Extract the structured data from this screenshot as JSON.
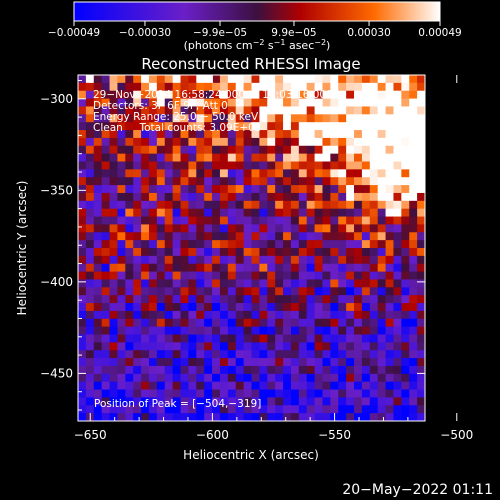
{
  "colorbar": {
    "tick_labels": [
      "−0.00049",
      "−0.00030",
      "−9.9e−05",
      "9.9e−05",
      "0.00030",
      "0.00049"
    ],
    "tick_values": [
      -0.00049,
      -0.0003,
      -9.9e-05,
      9.9e-05,
      0.0003,
      0.00049
    ],
    "range": [
      -0.00049,
      0.00049
    ],
    "unit_prefix": "(photons cm",
    "unit_exp1": "−2",
    "unit_mid": " s",
    "unit_exp2": "−1",
    "unit_mid2": " asec",
    "unit_exp3": "−2",
    "unit_suffix": ")",
    "colormap": [
      "#0000ff",
      "#6a1fc8",
      "#3c1040",
      "#b00000",
      "#ff6a00",
      "#ffffff"
    ]
  },
  "chart_data": {
    "type": "heatmap",
    "title": "Reconstructed RHESSI Image",
    "xlabel": "Heliocentric X (arcsec)",
    "ylabel": "Heliocentric Y (arcsec)",
    "xlim": [
      -655,
      -513
    ],
    "ylim": [
      -476,
      -287
    ],
    "x_ticks": [
      -650,
      -600,
      -550,
      -500
    ],
    "y_ticks": [
      -450,
      -400,
      -350,
      -300
    ],
    "x_tick_labels": [
      "−650",
      "−600",
      "−550",
      "−500"
    ],
    "y_tick_labels": [
      "−450",
      "−400",
      "−350",
      "−300"
    ],
    "annotations": [
      "29−Nov−2014 16:58:24.000 to 17:03:16.000",
      "Detectors: 3F 6F 9F, Att 0",
      "Energy Range: 25.0 − 50.0 keV",
      "Clean     Total counts: 3.09E+03"
    ],
    "peak_label": "Position of Peak = [−504,−319]",
    "peak": [
      -504,
      -319
    ]
  },
  "footer": {
    "date": "20−May−2022 01:11"
  }
}
